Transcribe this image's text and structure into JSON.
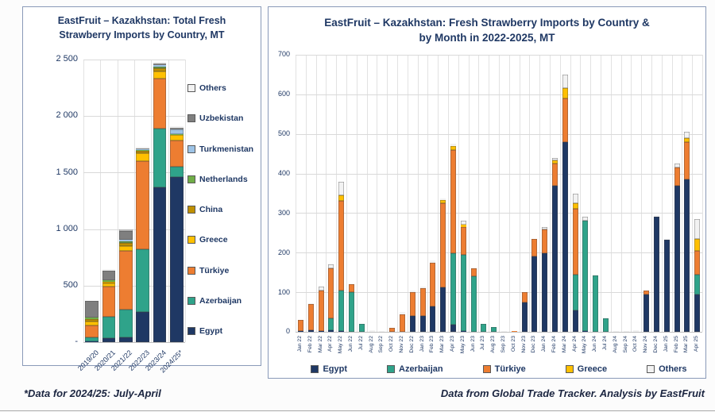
{
  "footer": {
    "left": "*Data for 2024/25: July-April",
    "right": "Data from Global Trade Tracker. Analysis by EastFruit"
  },
  "colors": {
    "Egypt": "#1f3864",
    "Azerbaijan": "#2fa38a",
    "Türkiye": "#ed7d31",
    "Greece": "#ffc000",
    "China": "#bf8f00",
    "Netherlands": "#70ad47",
    "Turkmenistan": "#9dc3e6",
    "Uzbekistan": "#7f7f7f",
    "Others": "#f2f2f2"
  },
  "chart_data": [
    {
      "type": "bar",
      "stacked": true,
      "title": "EastFruit – Kazakhstan: Total Fresh Strawberry Imports by Country, MT",
      "categories": [
        "2019/20",
        "2020/21",
        "2021/22",
        "2022/23",
        "2023/24",
        "2024/25*"
      ],
      "series": [
        {
          "name": "Egypt",
          "values": [
            10,
            35,
            40,
            270,
            1370,
            1460
          ]
        },
        {
          "name": "Azerbaijan",
          "values": [
            35,
            190,
            245,
            550,
            520,
            90
          ]
        },
        {
          "name": "Türkiye",
          "values": [
            105,
            270,
            520,
            780,
            440,
            235
          ]
        },
        {
          "name": "Greece",
          "values": [
            30,
            25,
            45,
            70,
            65,
            45
          ]
        },
        {
          "name": "China",
          "values": [
            25,
            15,
            25,
            20,
            25,
            5
          ]
        },
        {
          "name": "Netherlands",
          "values": [
            10,
            10,
            20,
            10,
            20,
            5
          ]
        },
        {
          "name": "Turkmenistan",
          "values": [
            0,
            0,
            10,
            5,
            10,
            45
          ]
        },
        {
          "name": "Uzbekistan",
          "values": [
            150,
            90,
            75,
            10,
            15,
            10
          ]
        },
        {
          "name": "Others",
          "values": [
            0,
            10,
            20,
            15,
            15,
            15
          ]
        }
      ],
      "ylim": [
        0,
        2500
      ],
      "ytick_values": [
        0,
        500,
        1000,
        1500,
        2000,
        2500
      ],
      "ytick_labels": [
        "-",
        "500",
        "1 000",
        "1 500",
        "2 000",
        "2 500"
      ],
      "legend": [
        "Others",
        "Uzbekistan",
        "Turkmenistan",
        "Netherlands",
        "China",
        "Greece",
        "Türkiye",
        "Azerbaijan",
        "Egypt"
      ],
      "legend_position": "right",
      "grid": true
    },
    {
      "type": "bar",
      "stacked": true,
      "title": "EastFruit – Kazakhstan: Fresh Strawberry Imports by Country & by Month in 2022-2025, MT",
      "categories": [
        "Jan 22",
        "Feb 22",
        "Mar 22",
        "Apr 22",
        "May 22",
        "Jun 22",
        "Jul 22",
        "Aug 22",
        "Sep 22",
        "Oct 22",
        "Nov 22",
        "Dec 22",
        "Jan 23",
        "Feb 23",
        "Mar 23",
        "Apr 23",
        "May 23",
        "Jun 23",
        "Jul 23",
        "Aug 23",
        "Sep 23",
        "Oct 23",
        "Nov 23",
        "Dec 23",
        "Jan 24",
        "Feb 24",
        "Mar 24",
        "Apr 24",
        "May 24",
        "Jun 24",
        "Jul 24",
        "Aug 24",
        "Sep 24",
        "Oct 24",
        "Nov 24",
        "Dec 24",
        "Jan 25",
        "Feb 25",
        "Mar 25",
        "Apr 25"
      ],
      "series": [
        {
          "name": "Egypt",
          "values": [
            3,
            5,
            3,
            5,
            2,
            0,
            0,
            0,
            0,
            0,
            0,
            40,
            40,
            65,
            112,
            18,
            3,
            0,
            0,
            0,
            0,
            0,
            75,
            190,
            198,
            370,
            480,
            55,
            2,
            0,
            0,
            0,
            0,
            0,
            95,
            290,
            232,
            370,
            385,
            95
          ]
        },
        {
          "name": "Azerbaijan",
          "values": [
            0,
            0,
            0,
            30,
            103,
            100,
            20,
            0,
            0,
            0,
            0,
            0,
            0,
            0,
            0,
            180,
            192,
            140,
            20,
            12,
            0,
            0,
            0,
            0,
            0,
            0,
            0,
            90,
            278,
            143,
            35,
            0,
            0,
            0,
            0,
            0,
            0,
            0,
            0,
            50
          ]
        },
        {
          "name": "Türkiye",
          "values": [
            27,
            65,
            102,
            125,
            225,
            20,
            0,
            0,
            0,
            10,
            45,
            60,
            70,
            110,
            213,
            262,
            70,
            20,
            0,
            0,
            0,
            2,
            25,
            45,
            60,
            55,
            110,
            165,
            0,
            0,
            0,
            0,
            0,
            0,
            10,
            0,
            0,
            45,
            95,
            60
          ]
        },
        {
          "name": "Greece",
          "values": [
            0,
            0,
            0,
            0,
            15,
            0,
            0,
            0,
            0,
            0,
            0,
            0,
            0,
            0,
            8,
            10,
            5,
            0,
            0,
            0,
            0,
            0,
            0,
            0,
            0,
            8,
            25,
            15,
            0,
            0,
            0,
            0,
            0,
            0,
            0,
            0,
            0,
            0,
            10,
            30
          ]
        },
        {
          "name": "Others",
          "values": [
            0,
            2,
            10,
            10,
            35,
            0,
            0,
            5,
            3,
            0,
            5,
            5,
            5,
            5,
            5,
            5,
            10,
            0,
            0,
            0,
            2,
            0,
            0,
            0,
            7,
            7,
            35,
            25,
            10,
            2,
            0,
            3,
            3,
            5,
            0,
            5,
            3,
            10,
            15,
            50
          ]
        }
      ],
      "ylim": [
        0,
        700
      ],
      "ytick_values": [
        0,
        100,
        200,
        300,
        400,
        500,
        600,
        700
      ],
      "ytick_labels": [
        "0",
        "100",
        "200",
        "300",
        "400",
        "500",
        "600",
        "700"
      ],
      "legend": [
        "Egypt",
        "Azerbaijan",
        "Türkiye",
        "Greece",
        "Others"
      ],
      "legend_position": "bottom",
      "grid": true
    }
  ]
}
